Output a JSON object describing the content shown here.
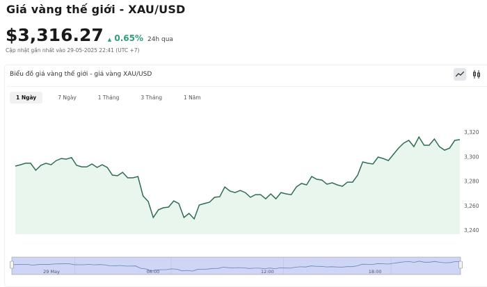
{
  "header": {
    "title": "Giá vàng thế giới - XAU/USD",
    "price": "$3,316.27",
    "change_arrow": "▲",
    "change": "0.65%",
    "change_period": "24h qua",
    "updated": "Cập nhật gần nhất vào 29-05-2025 22:41 (UTC +7)"
  },
  "card": {
    "title": "Biểu đồ giá vàng thế giới - giá vàng XAU/USD",
    "icons": [
      "line-chart-icon",
      "candlestick-icon"
    ],
    "tabs": [
      {
        "label": "1 Ngày",
        "active": true
      },
      {
        "label": "7 Ngày",
        "active": false
      },
      {
        "label": "1 Tháng",
        "active": false
      },
      {
        "label": "3 Tháng",
        "active": false
      },
      {
        "label": "1 Năm",
        "active": false
      }
    ]
  },
  "colors": {
    "line": "#2f6b55",
    "fill": "#e9f6ee",
    "up": "#2e9e77",
    "navigator": "#cfd5f5"
  },
  "chart_data": {
    "type": "area",
    "ylim": [
      3240,
      3320
    ],
    "y_ticks": [
      "3,240",
      "3,260",
      "3,280",
      "3,300",
      "3,320"
    ],
    "y_tick_values": [
      3240,
      3260,
      3280,
      3300,
      3320
    ],
    "navigator_labels": [
      "29 May",
      "06:00",
      "12:00",
      "18:00"
    ],
    "grid": false,
    "values": [
      3292.2,
      3293.3,
      3294.5,
      3294.5,
      3288.8,
      3292.8,
      3294.5,
      3293.3,
      3296.7,
      3298.4,
      3297.9,
      3299.2,
      3292.8,
      3291.6,
      3291.6,
      3293.9,
      3291.1,
      3293.3,
      3291.1,
      3284.8,
      3284.3,
      3287.1,
      3282.6,
      3282.6,
      3283.7,
      3267.8,
      3263.3,
      3250.2,
      3256.5,
      3258.2,
      3258.7,
      3263.8,
      3261.6,
      3250.2,
      3253.6,
      3249.1,
      3260.4,
      3261.6,
      3262.7,
      3266.7,
      3267.2,
      3275.2,
      3271.8,
      3270.6,
      3272.3,
      3270.6,
      3266.7,
      3268.9,
      3268.9,
      3265.5,
      3269.5,
      3265.5,
      3270.6,
      3269.5,
      3268.9,
      3275.2,
      3278.0,
      3276.9,
      3283.7,
      3281.4,
      3280.8,
      3277.4,
      3278.6,
      3276.9,
      3275.7,
      3279.1,
      3279.1,
      3284.8,
      3295.6,
      3294.5,
      3293.9,
      3299.6,
      3298.4,
      3296.7,
      3301.8,
      3306.9,
      3310.9,
      3313.2,
      3308.1,
      3316.0,
      3309.2,
      3309.2,
      3314.3,
      3308.1,
      3305.2,
      3306.9,
      3313.2,
      3313.8
    ]
  }
}
